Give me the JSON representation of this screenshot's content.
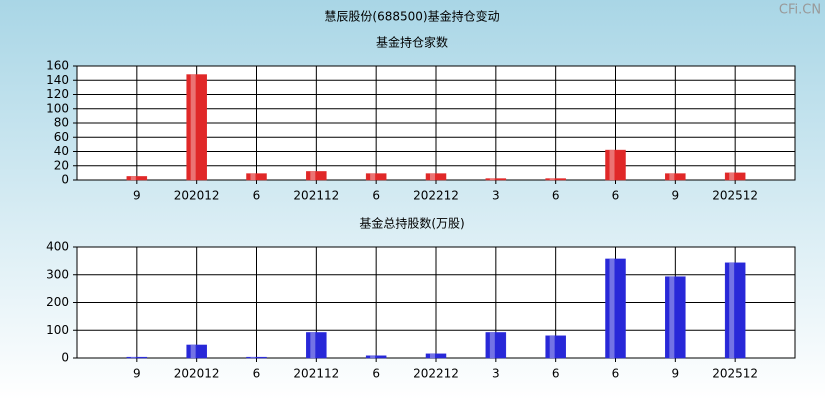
{
  "title": "慧辰股份(688500)基金持仓变动",
  "watermark": "CFi.CN",
  "chart_data": [
    {
      "type": "bar",
      "title": "基金持仓家数",
      "categories": [
        "9",
        "202012",
        "6",
        "202112",
        "6",
        "202212",
        "3",
        "6",
        "6",
        "9",
        "202512"
      ],
      "values": [
        5,
        148,
        9,
        12,
        9,
        9,
        2,
        2,
        42,
        9,
        10
      ],
      "color": "#e02828",
      "ylim": [
        0,
        160
      ],
      "yticks": [
        0,
        20,
        40,
        60,
        80,
        100,
        120,
        140,
        160
      ],
      "grid": true
    },
    {
      "type": "bar",
      "title": "基金总持股数(万股)",
      "categories": [
        "9",
        "202012",
        "6",
        "202112",
        "6",
        "202212",
        "3",
        "6",
        "6",
        "9",
        "202512"
      ],
      "values": [
        3,
        47,
        3,
        92,
        8,
        15,
        92,
        80,
        357,
        293,
        343
      ],
      "color": "#2828d8",
      "ylim": [
        0,
        400
      ],
      "yticks": [
        0,
        100,
        200,
        300,
        400
      ],
      "grid": true
    }
  ]
}
